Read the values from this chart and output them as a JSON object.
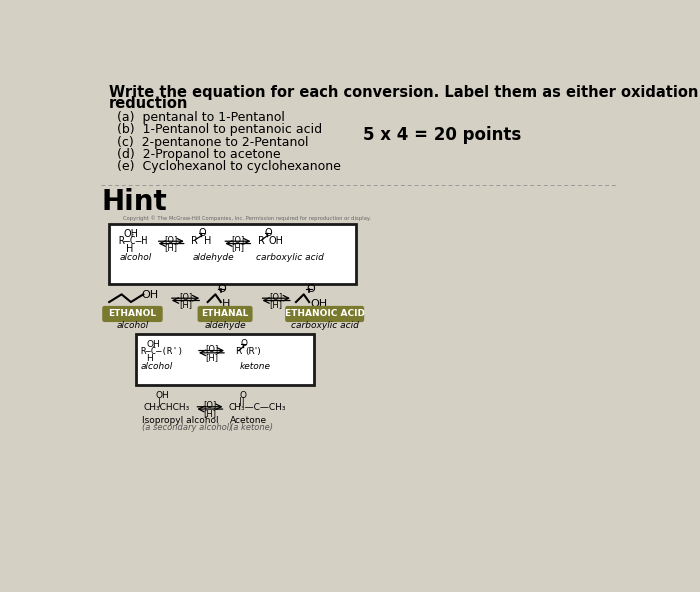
{
  "background_color": "#d4d0c4",
  "title_text1": "Write the equation for each conversion. Label them as either oxidation or",
  "title_text2": "reduction",
  "title_fontsize": 10.5,
  "items": [
    "(a)  pentanal to 1-Pentanol",
    "(b)  1-Pentanol to pentanoic acid",
    "(c)  2-pentanone to 2-Pentanol",
    "(d)  2-Propanol to acetone",
    "(e)  Cyclohexanol to cyclohexanone"
  ],
  "item_fontsize": 9,
  "points_text": "5 x 4 = 20 points",
  "points_fontsize": 12,
  "hint_label": "Hint",
  "hint_fontsize": 20,
  "copyright_text": "Copyright © The McGraw-Hill Companies, Inc. Permission required for reproduction or display.",
  "olive_color": "#7a7a2e",
  "box_edge_color": "#1a1a1a",
  "dashed_line_color": "#999999"
}
